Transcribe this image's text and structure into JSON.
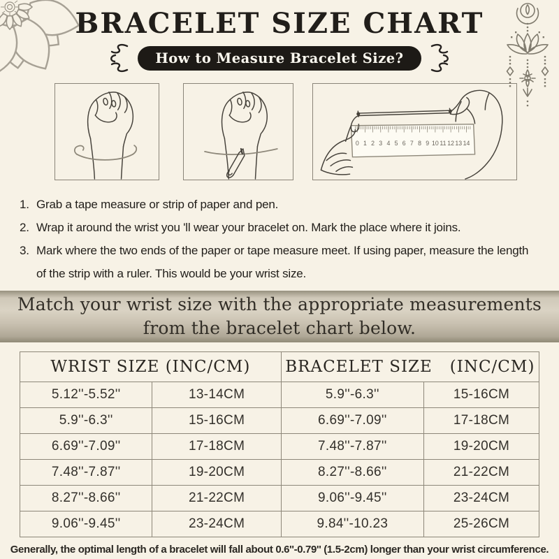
{
  "header": {
    "title": "BRACELET SIZE CHART",
    "badge": "How to Measure Bracelet Size?"
  },
  "steps": [
    {
      "num": "1.",
      "text": "Grab a tape measure or strip of paper and pen."
    },
    {
      "num": "2.",
      "text": "Wrap it around the wrist you 'll wear your bracelet on. Mark the place where it joins."
    },
    {
      "num": "3.",
      "text": "Mark where the two ends of the paper or tape measure meet. If using paper, measure the length of the strip with a ruler. This would be your wrist size."
    }
  ],
  "banner": {
    "line1": "Match your wrist size with the appropriate measurements",
    "line2": "from the bracelet chart below."
  },
  "size_table": {
    "headers": [
      "WRIST SIZE (INC/CM)",
      "BRACELET SIZE   (INC/CM)"
    ],
    "rows": [
      [
        "5.12''-5.52''",
        "13-14CM",
        "5.9''-6.3''",
        "15-16CM"
      ],
      [
        "5.9''-6.3''",
        "15-16CM",
        "6.69''-7.09''",
        "17-18CM"
      ],
      [
        "6.69''-7.09''",
        "17-18CM",
        "7.48''-7.87''",
        "19-20CM"
      ],
      [
        "7.48''-7.87''",
        "19-20CM",
        "8.27''-8.66''",
        "21-22CM"
      ],
      [
        "8.27''-8.66''",
        "21-22CM",
        "9.06''-9.45''",
        "23-24CM"
      ],
      [
        "9.06''-9.45''",
        "23-24CM",
        "9.84''-10.23",
        "25-26CM"
      ]
    ]
  },
  "footnote": "Generally, the optimal length of a bracelet will fall about 0.6''-0.79'' (1.5-2cm) longer than your wrist circumference.",
  "ruler": {
    "numbers": [
      "0",
      "1",
      "2",
      "3",
      "4",
      "5",
      "6",
      "7",
      "8",
      "9",
      "10",
      "11",
      "12",
      "13",
      "14"
    ]
  },
  "colors": {
    "background": "#f7f2e6",
    "badge_bg": "#1d1a16",
    "badge_text": "#faf7ee",
    "banner_mid": "#dad3c4",
    "banner_edge": "#8f8976",
    "table_line": "#8d8779",
    "text": "#211e1a",
    "decoration": "#a7a195",
    "line_art": "#46423b"
  }
}
